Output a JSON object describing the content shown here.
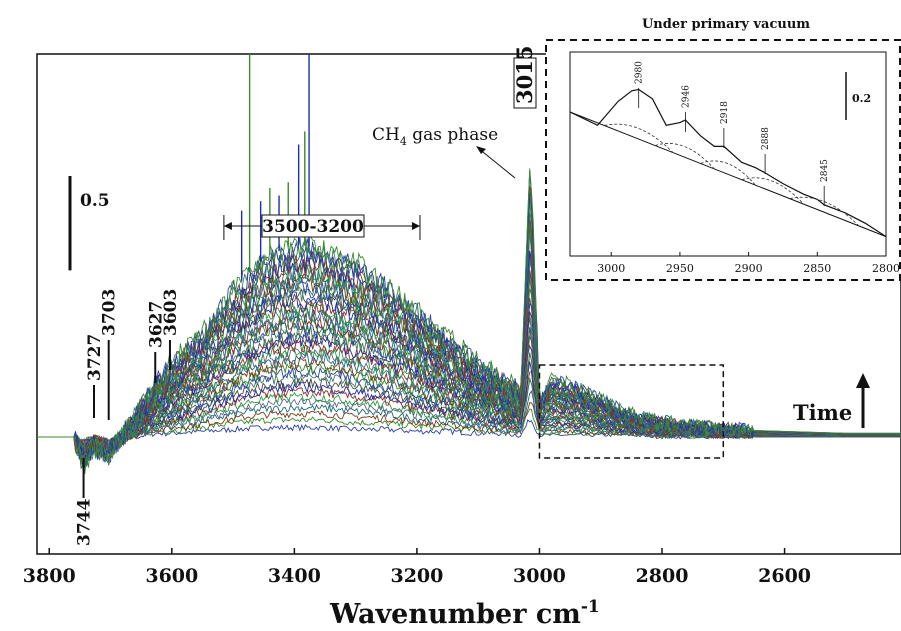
{
  "chart_data": [
    {
      "type": "line",
      "title": "",
      "xlabel": "Wavenumber cm",
      "xlabel_superscript": "-1",
      "ylabel": "",
      "xlim": [
        3820,
        2410
      ],
      "x_reversed": true,
      "ylim": [
        -0.62,
        2.03
      ],
      "xticks": [
        3800,
        3600,
        3400,
        3200,
        3000,
        2800,
        2600
      ],
      "grid": false,
      "legend": "none",
      "series_count": 42,
      "series_colors": [
        "#2a3fa8",
        "#3a8a2a",
        "#7a3a1a",
        "#1e6b7e",
        "#5a6a8a",
        "#2f9a3f",
        "#8a2f2f",
        "#1c2fae",
        "#4a4a4a",
        "#3f7f5f"
      ],
      "envelope": {
        "x": [
          3820,
          3760,
          3744,
          3727,
          3703,
          3660,
          3627,
          3603,
          3550,
          3500,
          3450,
          3400,
          3350,
          3300,
          3250,
          3200,
          3150,
          3100,
          3060,
          3030,
          3015,
          3000,
          2980,
          2950,
          2900,
          2850,
          2800,
          2750,
          2700,
          2650,
          2600,
          2500,
          2410
        ],
        "y_final": [
          0.0,
          0.0,
          -0.15,
          -0.05,
          -0.1,
          0.1,
          0.28,
          0.38,
          0.55,
          0.78,
          0.95,
          1.02,
          1.0,
          0.92,
          0.8,
          0.66,
          0.52,
          0.39,
          0.3,
          0.24,
          1.52,
          0.18,
          0.3,
          0.28,
          0.2,
          0.12,
          0.08,
          0.06,
          0.045,
          0.035,
          0.03,
          0.02,
          0.02
        ],
        "y_initial": [
          0.0,
          0.0,
          -0.02,
          0.0,
          -0.02,
          0.0,
          0.02,
          0.02,
          0.03,
          0.04,
          0.05,
          0.05,
          0.05,
          0.04,
          0.04,
          0.03,
          0.03,
          0.02,
          0.02,
          0.01,
          0.1,
          0.01,
          0.01,
          0.01,
          0.01,
          0.01,
          0.0,
          0.0,
          0.0,
          0.0,
          0.0,
          0.0,
          0.0
        ]
      },
      "gas_phase_lines": {
        "x": [
          3486,
          3473,
          3455,
          3440,
          3425,
          3410,
          3393,
          3383,
          3376
        ],
        "peak_y": [
          1.2,
          2.03,
          1.25,
          1.32,
          1.28,
          1.35,
          1.55,
          1.62,
          2.03
        ]
      },
      "annotations": {
        "scale_bar": "0.5",
        "scale_bar_value": 0.5,
        "range_label": "3500-3200",
        "range_x": [
          3515,
          3195
        ],
        "gas_phase_label": "CH",
        "gas_phase_sub": "4",
        "gas_phase_suffix": " gas phase",
        "time_label": "Time",
        "peak_labels": [
          "3744",
          "3727",
          "3703",
          "3627",
          "3603",
          "3015"
        ],
        "zoom_box_x": [
          3000,
          2700
        ]
      }
    },
    {
      "type": "line",
      "title": "Under primary vacuum",
      "xlabel": "",
      "ylabel": "",
      "xlim": [
        3030,
        2800
      ],
      "x_reversed": true,
      "xticks": [
        3000,
        2950,
        2900,
        2850,
        2800
      ],
      "grid": false,
      "legend": "none",
      "scale_bar": "0.2",
      "scale_bar_value": 0.2,
      "peaks": [
        2980,
        2946,
        2918,
        2888,
        2845
      ],
      "series": [
        {
          "name": "",
          "x": [
            3030,
            3010,
            2995,
            2985,
            2980,
            2970,
            2960,
            2950,
            2946,
            2935,
            2925,
            2918,
            2905,
            2895,
            2888,
            2875,
            2860,
            2850,
            2845,
            2830,
            2815,
            2800
          ],
          "y": [
            0.0,
            -0.05,
            0.04,
            0.08,
            0.085,
            0.05,
            -0.05,
            -0.04,
            -0.03,
            -0.09,
            -0.13,
            -0.13,
            -0.19,
            -0.21,
            -0.23,
            -0.27,
            -0.31,
            -0.33,
            -0.35,
            -0.38,
            -0.42,
            -0.47
          ]
        },
        {
          "name": "",
          "x": [
            3030,
            2800
          ],
          "y": [
            0.0,
            -0.47
          ]
        }
      ]
    }
  ]
}
